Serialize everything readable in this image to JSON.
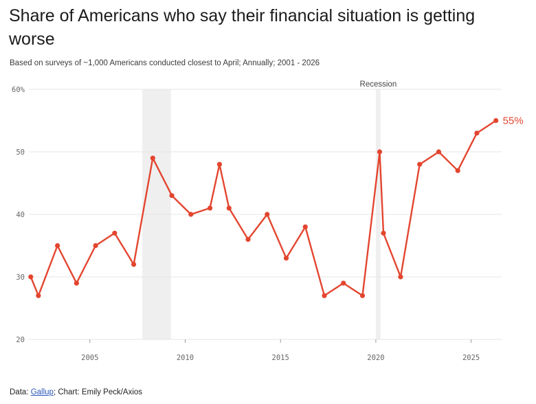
{
  "header": {
    "title": "Share of Americans who say their financial situation is getting worse",
    "subtitle": "Based on surveys of ~1,000 Americans conducted closest to April; Annually; 2001 - 2026"
  },
  "footer": {
    "data_prefix": "Data: ",
    "source_link": "Gallup",
    "credit": "; Chart: Emily Peck/Axios"
  },
  "colors": {
    "line": "#e3452f",
    "recession_band": "#efefef",
    "grid": "#e6e6e6"
  },
  "chart_data": {
    "type": "line",
    "title": "Share of Americans who say their financial situation is getting worse",
    "ylim": [
      20,
      60
    ],
    "xlim": [
      2001.8,
      2026.6
    ],
    "y_ticks": [
      20,
      30,
      40,
      50,
      60
    ],
    "y_tick_labels": [
      "20",
      "30",
      "40",
      "50",
      "60%"
    ],
    "x_ticks": [
      2005,
      2010,
      2015,
      2020,
      2025
    ],
    "x_tick_labels": [
      "2005",
      "2010",
      "2015",
      "2020",
      "2025"
    ],
    "grid": "horizontal",
    "recession_label": "Recession",
    "recessions": [
      [
        2007.75,
        2009.25
      ],
      [
        2020.0,
        2020.25
      ]
    ],
    "end_label": "55%",
    "series": [
      {
        "x": [
          2001.9,
          2002.3,
          2003.3,
          2004.3,
          2005.3,
          2006.3,
          2007.3,
          2008.3,
          2009.3,
          2010.3,
          2011.3,
          2011.8,
          2012.3,
          2013.3,
          2014.3,
          2015.3,
          2016.3,
          2017.3,
          2018.3,
          2019.3,
          2020.2,
          2020.4,
          2021.3,
          2022.3,
          2023.3,
          2024.3,
          2025.3,
          2026.3
        ],
        "y": [
          30,
          27,
          35,
          29,
          35,
          37,
          32,
          49,
          43,
          40,
          41,
          48,
          41,
          36,
          40,
          33,
          38,
          27,
          29,
          27,
          50,
          37,
          30,
          48,
          50,
          47,
          53,
          55
        ]
      }
    ]
  }
}
